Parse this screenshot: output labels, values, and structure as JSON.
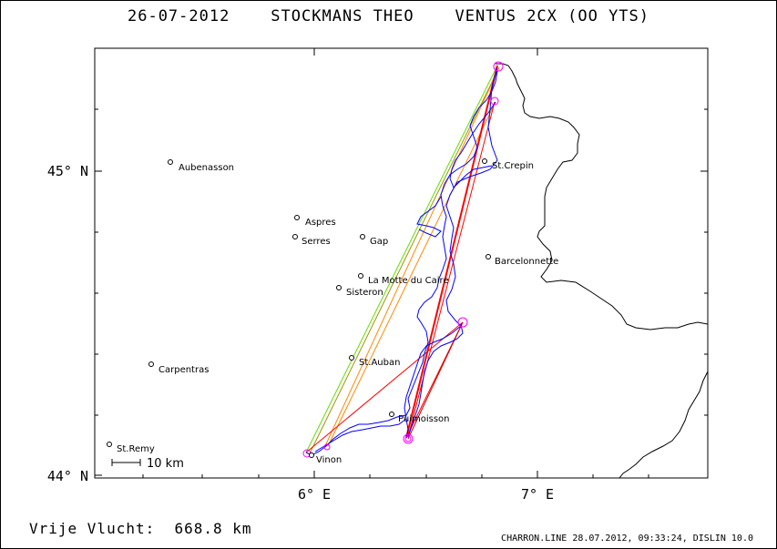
{
  "header": {
    "date": "26-07-2012",
    "pilot": "STOCKMANS THEO",
    "glider": "VENTUS 2CX (OO YTS)"
  },
  "footer": {
    "distance_label": "Vrije Vlucht:",
    "distance_value": "668.8 km",
    "credit": "CHARRON.LINE 28.07.2012, 09:33:24, DISLIN 10.0"
  },
  "axes": {
    "lat_labels": [
      "45° N",
      "44° N"
    ],
    "lon_labels": [
      "6° E",
      "7° E"
    ],
    "lat_range": [
      44.0,
      45.4
    ],
    "lon_range": [
      5.0,
      7.8
    ]
  },
  "scale_bar": {
    "label": "10 km"
  },
  "towns": [
    {
      "name": "Aubenasson"
    },
    {
      "name": "Aspres"
    },
    {
      "name": "Serres"
    },
    {
      "name": "Gap"
    },
    {
      "name": "La Motte du Caire"
    },
    {
      "name": "Sisteron"
    },
    {
      "name": "St.Crepin"
    },
    {
      "name": "Barcelonnette"
    },
    {
      "name": "St.Auban"
    },
    {
      "name": "Carpentras"
    },
    {
      "name": "Puimoisson"
    },
    {
      "name": "St.Remy"
    },
    {
      "name": "Vinon"
    }
  ],
  "colors": {
    "track": "#0000ff",
    "border": "#000000",
    "turnpoint": "#ff00ff",
    "leg_red": "#ff0000",
    "leg_green": "#66dd00",
    "leg_olive": "#999900",
    "leg_orange": "#ff8800"
  }
}
